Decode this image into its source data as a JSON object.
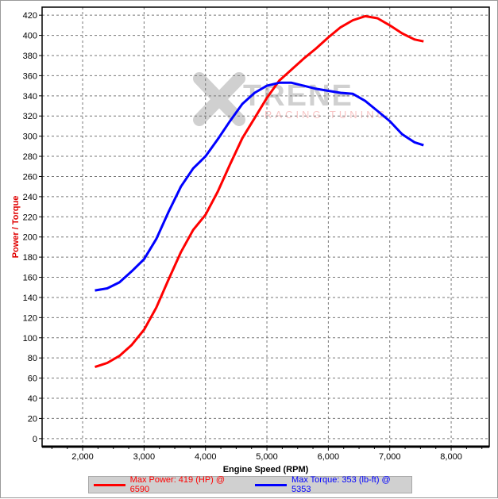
{
  "chart_data": {
    "type": "line",
    "xlabel": "Engine Speed (RPM)",
    "ylabel": "Power / Torque",
    "xlim": [
      1340,
      8620
    ],
    "ylim": [
      -8,
      428
    ],
    "xticks": [
      2000,
      3000,
      4000,
      5000,
      6000,
      7000,
      8000
    ],
    "xtick_labels": [
      "2,000",
      "3,000",
      "4,000",
      "5,000",
      "6,000",
      "7,000",
      "8,000"
    ],
    "yticks": [
      0,
      20,
      40,
      60,
      80,
      100,
      120,
      140,
      160,
      180,
      200,
      220,
      240,
      260,
      280,
      300,
      320,
      340,
      360,
      380,
      400,
      420
    ],
    "grid": true,
    "legend_placement": "bottom",
    "watermark": "XTRENE RACING TUNING",
    "series": [
      {
        "name": "Max Power: 419 (HP) @ 6590",
        "color": "#ff0000",
        "x": [
          2200,
          2400,
          2600,
          2800,
          3000,
          3200,
          3400,
          3600,
          3800,
          4000,
          4200,
          4400,
          4600,
          4800,
          5000,
          5200,
          5400,
          5600,
          5800,
          6000,
          6200,
          6400,
          6600,
          6800,
          7000,
          7200,
          7400,
          7550
        ],
        "y": [
          71,
          75,
          82,
          93,
          108,
          130,
          158,
          185,
          207,
          222,
          245,
          272,
          298,
          318,
          338,
          355,
          366,
          377,
          387,
          398,
          408,
          415,
          419,
          417,
          410,
          402,
          396,
          394
        ]
      },
      {
        "name": "Max Torque: 353 (lb-ft) @ 5353",
        "color": "#0000ff",
        "x": [
          2200,
          2400,
          2600,
          2800,
          3000,
          3200,
          3400,
          3600,
          3800,
          4000,
          4200,
          4400,
          4600,
          4800,
          5000,
          5200,
          5400,
          5600,
          5800,
          6000,
          6200,
          6400,
          6600,
          6800,
          7000,
          7200,
          7400,
          7550
        ],
        "y": [
          147,
          149,
          155,
          166,
          178,
          198,
          225,
          250,
          268,
          280,
          297,
          315,
          332,
          343,
          350,
          353,
          353,
          350,
          347,
          345,
          343,
          342,
          335,
          325,
          315,
          302,
          294,
          291
        ]
      }
    ]
  }
}
